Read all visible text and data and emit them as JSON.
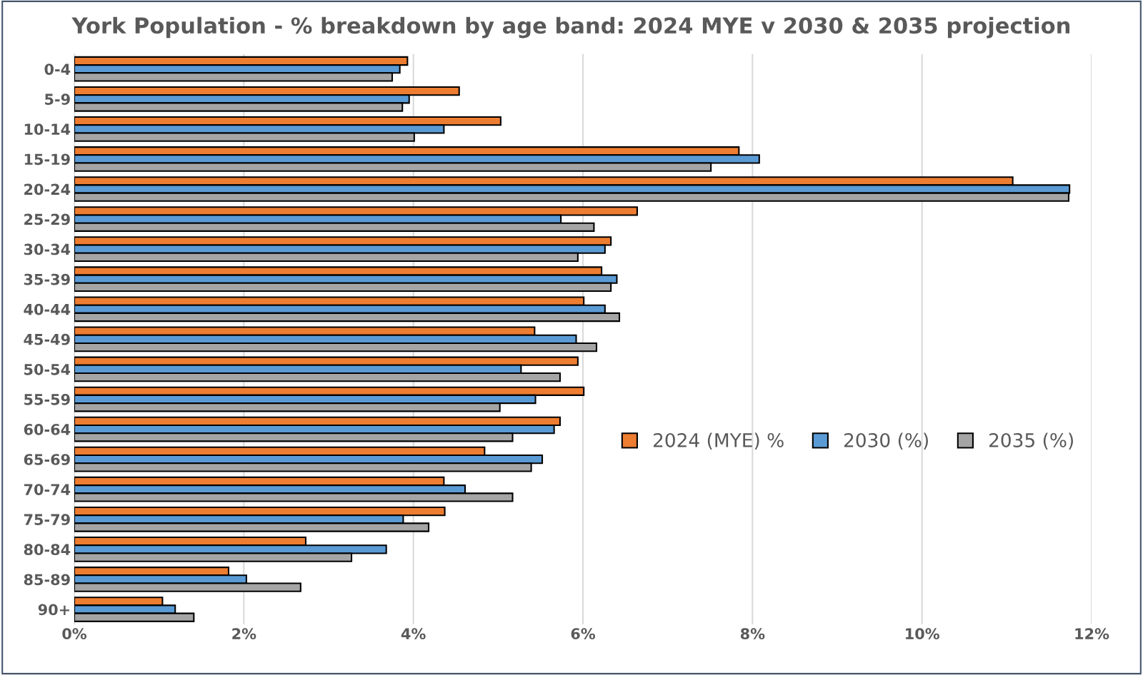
{
  "chart_data": {
    "type": "bar",
    "orientation": "horizontal",
    "title": "York Population - % breakdown by age band: 2024 MYE v 2030 & 2035 projection",
    "categories": [
      "0-4",
      "5-9",
      "10-14",
      "15-19",
      "20-24",
      "25-29",
      "30-34",
      "35-39",
      "40-44",
      "45-49",
      "50-54",
      "55-59",
      "60-64",
      "65-69",
      "70-74",
      "75-79",
      "80-84",
      "85-89",
      "90+"
    ],
    "series": [
      {
        "name": "2024 (MYE) %",
        "color": "#ed7d31",
        "values": [
          3.93,
          4.54,
          5.03,
          7.84,
          11.07,
          6.64,
          6.33,
          6.22,
          6.01,
          5.43,
          5.94,
          6.01,
          5.73,
          4.84,
          4.36,
          4.37,
          2.73,
          1.82,
          1.04
        ]
      },
      {
        "name": "2030 (%)",
        "color": "#5b9bd5",
        "values": [
          3.84,
          3.95,
          4.36,
          8.08,
          11.74,
          5.74,
          6.26,
          6.4,
          6.26,
          5.92,
          5.27,
          5.44,
          5.66,
          5.52,
          4.61,
          3.88,
          3.68,
          2.03,
          1.19
        ]
      },
      {
        "name": "2035 (%)",
        "color": "#a5a5a5",
        "values": [
          3.75,
          3.87,
          4.01,
          7.51,
          11.73,
          6.13,
          5.94,
          6.33,
          6.43,
          6.16,
          5.73,
          5.02,
          5.17,
          5.39,
          5.17,
          4.18,
          3.27,
          2.67,
          1.41
        ]
      }
    ],
    "xlim": [
      0,
      12
    ],
    "xticks": [
      {
        "value": 0,
        "label": "0%"
      },
      {
        "value": 2,
        "label": "2%"
      },
      {
        "value": 4,
        "label": "4%"
      },
      {
        "value": 6,
        "label": "6%"
      },
      {
        "value": 8,
        "label": "8%"
      },
      {
        "value": 10,
        "label": "10%"
      },
      {
        "value": 12,
        "label": "12%"
      }
    ],
    "grid": "x",
    "legend": "right"
  }
}
